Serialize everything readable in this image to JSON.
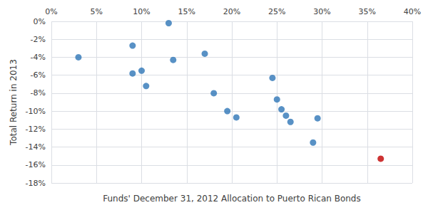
{
  "chart_data": {
    "type": "scatter",
    "xlabel": "Funds' December 31, 2012 Allocation to Puerto Rican Bonds",
    "ylabel": "Total Return in 2013",
    "series": [
      {
        "color": "#2E75B6",
        "values": [
          [
            3.0,
            -4.0
          ],
          [
            9.0,
            -2.7
          ],
          [
            9.0,
            -5.8
          ],
          [
            10.0,
            -5.5
          ],
          [
            10.5,
            -7.2
          ],
          [
            13.0,
            -0.2
          ],
          [
            13.5,
            -4.3
          ],
          [
            17.0,
            -3.6
          ],
          [
            18.0,
            -8.0
          ],
          [
            19.5,
            -10.0
          ],
          [
            20.5,
            -10.7
          ],
          [
            24.5,
            -6.3
          ],
          [
            25.0,
            -8.7
          ],
          [
            25.5,
            -9.8
          ],
          [
            26.0,
            -10.5
          ],
          [
            26.5,
            -11.2
          ],
          [
            29.5,
            -10.8
          ],
          [
            29.0,
            -13.5
          ]
        ]
      },
      {
        "color": "#C00000",
        "values": [
          [
            36.5,
            -15.3
          ]
        ]
      }
    ],
    "xlim": [
      0,
      40
    ],
    "ylim": [
      -18,
      0
    ],
    "xticks": [
      {
        "value": 0,
        "label": "0%"
      },
      {
        "value": 5,
        "label": "5%"
      },
      {
        "value": 10,
        "label": "10%"
      },
      {
        "value": 15,
        "label": "15%"
      },
      {
        "value": 20,
        "label": "20%"
      },
      {
        "value": 25,
        "label": "25%"
      },
      {
        "value": 30,
        "label": "30%"
      },
      {
        "value": 35,
        "label": "35%"
      },
      {
        "value": 40,
        "label": "40%"
      }
    ],
    "yticks": [
      {
        "value": 0,
        "label": "0%"
      },
      {
        "value": -2,
        "label": "-2%"
      },
      {
        "value": -4,
        "label": "-4%"
      },
      {
        "value": -6,
        "label": "-6%"
      },
      {
        "value": -8,
        "label": "-8%"
      },
      {
        "value": -10,
        "label": "-10%"
      },
      {
        "value": -12,
        "label": "-12%"
      },
      {
        "value": -14,
        "label": "-14%"
      },
      {
        "value": -16,
        "label": "-16%"
      },
      {
        "value": -18,
        "label": "-18%"
      }
    ],
    "grid": true
  }
}
